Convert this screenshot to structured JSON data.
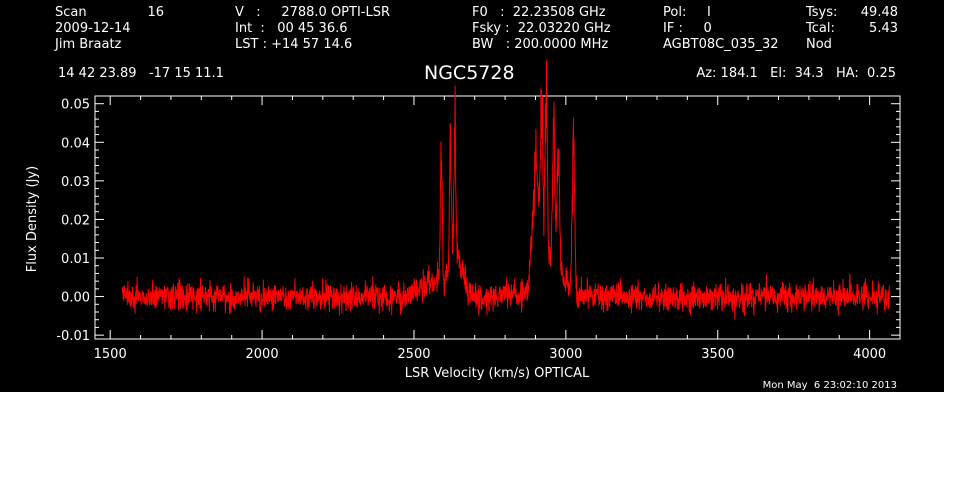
{
  "header": {
    "col1": {
      "scan_label": "Scan",
      "scan_value": "16",
      "date": "2009-12-14",
      "observer": "Jim Braatz"
    },
    "col2": {
      "v_line": "V   :     2788.0 OPTI-LSR",
      "int_line": "Int  :   00 45 36.6",
      "lst_line": "LST : +14 57 14.6"
    },
    "col3": {
      "f0_line": "F0   :  22.23508 GHz",
      "fsky_line": "Fsky :  22.03220 GHz",
      "bw_line": "BW   : 200.0000 MHz"
    },
    "col4": {
      "pol_line": "Pol:     I",
      "if_line": "IF :     0",
      "project": "AGBT08C_035_32"
    },
    "col5": {
      "tsys_label": "Tsys:",
      "tsys_value": "49.48",
      "tcal_label": "Tcal:",
      "tcal_value": "5.43",
      "mode": "Nod"
    },
    "coords": "14 42 23.89   -17 15 11.1",
    "source": "NGC5728",
    "az_el_ha": "Az: 184.1   El:  34.3   HA:  0.25"
  },
  "timestamp": "Mon May  6 23:02:10 2013",
  "colors": {
    "background": "#000000",
    "axes": "#ffffff",
    "series": "#ff0000"
  },
  "chart_data": {
    "type": "line",
    "xlabel": "LSR Velocity (km/s) OPTICAL",
    "ylabel": "Flux Density (Jy)",
    "xlim": [
      1450,
      4100
    ],
    "ylim": [
      -0.011,
      0.052
    ],
    "xticks": [
      1500,
      2000,
      2500,
      3000,
      3500,
      4000
    ],
    "xticklabels": [
      "1500",
      "2000",
      "2500",
      "3000",
      "3500",
      "4000"
    ],
    "yticks": [
      -0.01,
      0.0,
      0.01,
      0.02,
      0.03,
      0.04,
      0.05
    ],
    "yticklabels": [
      "-0.01",
      "0.00",
      "0.01",
      "0.02",
      "0.03",
      "0.04",
      "0.05"
    ],
    "grid": false,
    "series": [
      {
        "x_range": [
          1540,
          4065
        ],
        "noise_rms": 0.0035,
        "features": [
          {
            "x": 2570,
            "width": 40,
            "peak": 0.004
          },
          {
            "x": 2590,
            "width": 3,
            "peak": 0.033
          },
          {
            "x": 2620,
            "width": 3,
            "peak": 0.033
          },
          {
            "x": 2635,
            "width": 3,
            "peak": 0.034
          },
          {
            "x": 2640,
            "width": 20,
            "peak": 0.01
          },
          {
            "x": 2900,
            "width": 10,
            "peak": 0.03
          },
          {
            "x": 2920,
            "width": 4,
            "peak": 0.041
          },
          {
            "x": 2935,
            "width": 4,
            "peak": 0.045
          },
          {
            "x": 2950,
            "width": 40,
            "peak": 0.008
          },
          {
            "x": 2960,
            "width": 4,
            "peak": 0.036
          },
          {
            "x": 2975,
            "width": 4,
            "peak": 0.033
          },
          {
            "x": 3025,
            "width": 4,
            "peak": 0.04
          }
        ]
      }
    ]
  }
}
